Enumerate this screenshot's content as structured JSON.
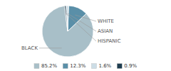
{
  "chart_data": {
    "type": "pie",
    "categories": [
      "BLACK",
      "WHITE",
      "ASIAN",
      "HISPANIC"
    ],
    "values": [
      85.2,
      12.3,
      1.6,
      0.9
    ],
    "value_labels": [
      "85.2%",
      "12.3%",
      "1.6%",
      "0.9%"
    ],
    "colors": [
      "#a8bfc8",
      "#5a8fa8",
      "#ccdde6",
      "#1e3d50"
    ],
    "legend": "bottom"
  }
}
